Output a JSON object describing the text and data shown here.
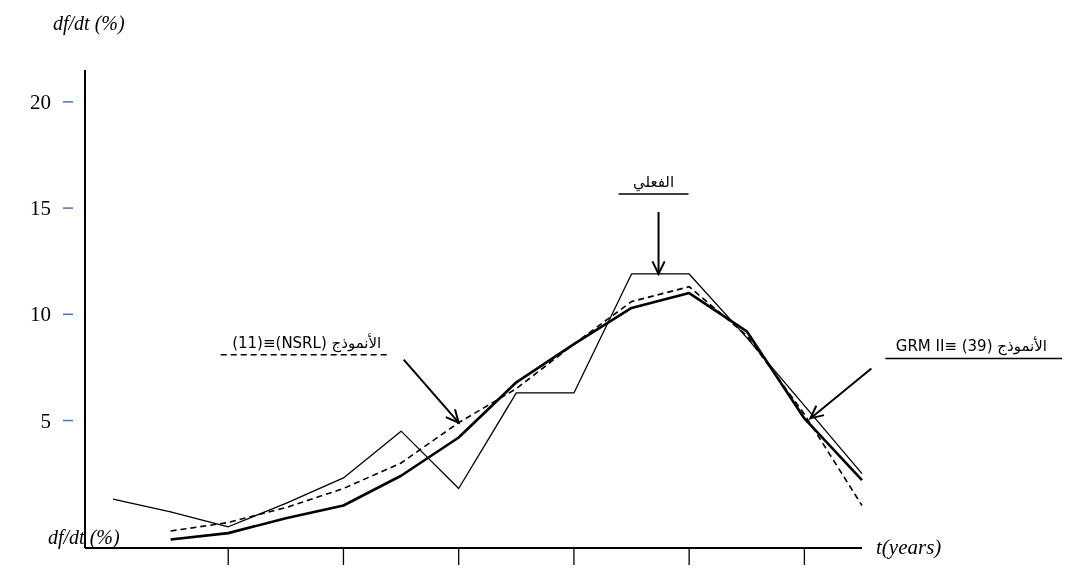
{
  "chart_data": {
    "type": "line",
    "ylabel": "df/dt (%)",
    "xlabel": "t(years)",
    "annotations": [
      "df/dt (%)",
      "الفعلي",
      "الأنموذج (NSRL)≡(11)",
      "الأنموذج GRM II≡ (39)"
    ],
    "categories": [
      null,
      null,
      null,
      null,
      null,
      null,
      null,
      null,
      null,
      null,
      null,
      null,
      null,
      null
    ],
    "ylim": [
      -1,
      21.5
    ],
    "yticks": [
      5,
      10,
      15,
      20
    ],
    "marker": "none",
    "series": [
      {
        "color": "#000000",
        "line_style": "solid",
        "values": [
          1.3,
          0.7,
          0.0,
          1.1,
          2.3,
          4.5,
          1.8,
          6.3,
          6.3,
          11.9,
          11.9,
          8.9,
          5.7,
          2.5
        ]
      },
      {
        "color": "#000000",
        "line_style": "dashed",
        "values": [
          null,
          -0.2,
          0.2,
          0.9,
          1.8,
          3.0,
          4.9,
          6.5,
          8.6,
          10.6,
          11.3,
          9.0,
          5.3,
          1.0
        ]
      },
      {
        "color": "#000000",
        "line_style": "solid",
        "values": [
          null,
          -0.6,
          -0.3,
          0.4,
          1.0,
          2.4,
          4.2,
          6.8,
          8.6,
          10.3,
          11.0,
          9.2,
          5.1,
          2.2
        ]
      }
    ]
  }
}
